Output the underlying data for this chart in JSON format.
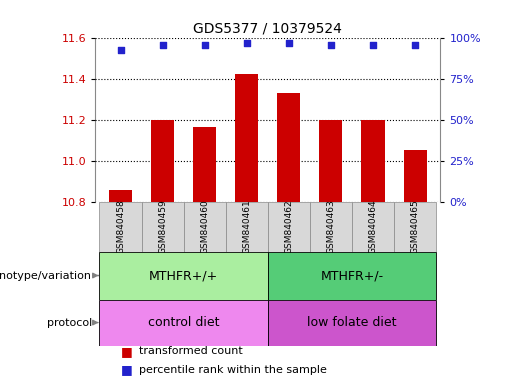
{
  "title": "GDS5377 / 10379524",
  "samples": [
    "GSM840458",
    "GSM840459",
    "GSM840460",
    "GSM840461",
    "GSM840462",
    "GSM840463",
    "GSM840464",
    "GSM840465"
  ],
  "transformed_count": [
    10.855,
    11.2,
    11.165,
    11.425,
    11.33,
    11.2,
    11.2,
    11.055
  ],
  "percentile_rank": [
    93,
    96,
    96,
    97,
    97,
    96,
    96,
    96
  ],
  "ylim_left": [
    10.8,
    11.6
  ],
  "ylim_right": [
    0,
    100
  ],
  "yticks_left": [
    10.8,
    11.0,
    11.2,
    11.4,
    11.6
  ],
  "yticks_right": [
    0,
    25,
    50,
    75,
    100
  ],
  "bar_color": "#cc0000",
  "dot_color": "#2222cc",
  "bar_bottom": 10.8,
  "bar_width": 0.55,
  "genotype_labels": [
    {
      "text": "MTHFR+/+",
      "start": 0,
      "end": 3,
      "color": "#aaeea0"
    },
    {
      "text": "MTHFR+/-",
      "start": 4,
      "end": 7,
      "color": "#55cc77"
    }
  ],
  "protocol_labels": [
    {
      "text": "control diet",
      "start": 0,
      "end": 3,
      "color": "#ee88ee"
    },
    {
      "text": "low folate diet",
      "start": 4,
      "end": 7,
      "color": "#cc55cc"
    }
  ],
  "genotype_row_label": "genotype/variation",
  "protocol_row_label": "protocol",
  "legend_entries": [
    {
      "color": "#cc0000",
      "label": "transformed count"
    },
    {
      "color": "#2222cc",
      "label": "percentile rank within the sample"
    }
  ],
  "background_color": "#ffffff",
  "left_tick_color": "#cc0000",
  "right_tick_color": "#2222cc",
  "sample_box_color": "#d8d8d8",
  "sample_box_edge": "#888888"
}
